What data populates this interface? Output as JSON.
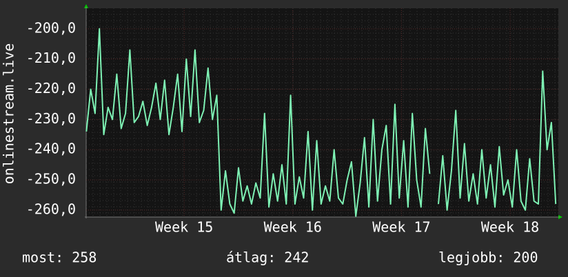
{
  "chart_data": {
    "type": "line",
    "ylabel": "onlinestream.live",
    "x": [
      14.1,
      14.14,
      14.18,
      14.22,
      14.26,
      14.3,
      14.34,
      14.38,
      14.42,
      14.46,
      14.5,
      14.54,
      14.58,
      14.62,
      14.66,
      14.7,
      14.74,
      14.78,
      14.82,
      14.86,
      14.9,
      14.94,
      14.98,
      15.02,
      15.06,
      15.1,
      15.14,
      15.18,
      15.22,
      15.26,
      15.3,
      15.34,
      15.38,
      15.42,
      15.46,
      15.5,
      15.54,
      15.58,
      15.62,
      15.66,
      15.7,
      15.74,
      15.78,
      15.82,
      15.86,
      15.9,
      15.94,
      15.98,
      16.02,
      16.06,
      16.1,
      16.14,
      16.18,
      16.22,
      16.26,
      16.3,
      16.34,
      16.38,
      16.42,
      16.46,
      16.5,
      16.54,
      16.58,
      16.62,
      16.66,
      16.7,
      16.74,
      16.78,
      16.82,
      16.86,
      16.9,
      16.94,
      16.98,
      17.02,
      17.06,
      17.1,
      17.14,
      17.18,
      17.22,
      17.26,
      17.3,
      17.34,
      17.38,
      17.42,
      17.46,
      17.5,
      17.54,
      17.58,
      17.62,
      17.66,
      17.7,
      17.74,
      17.78,
      17.82,
      17.86,
      17.9,
      17.94,
      17.98,
      18.02,
      18.06,
      18.1,
      18.14,
      18.18,
      18.22,
      18.26,
      18.3,
      18.34,
      18.38,
      18.42
    ],
    "series": [
      {
        "color": "#7ef2b4",
        "values": [
          -234,
          -220,
          -228,
          -200,
          -235,
          -226,
          -230,
          -215,
          -233,
          -228,
          -207,
          -231,
          -229,
          -224,
          -232,
          -226,
          -218,
          -230,
          -217,
          -235,
          -226,
          -215,
          -234,
          -210,
          -229,
          -207,
          -231,
          -227,
          -213,
          -230,
          -222,
          -260,
          -247,
          -258,
          -261,
          -246,
          -257,
          -252,
          -258,
          -251,
          -256,
          -228,
          -259,
          -248,
          -257,
          -245,
          -258,
          -222,
          -258,
          -249,
          -256,
          -234,
          -260,
          -237,
          -258,
          -252,
          -257,
          -240,
          -256,
          -258,
          -250,
          -244,
          -262,
          -251,
          -236,
          -259,
          -230,
          -257,
          -240,
          -232,
          -258,
          -225,
          -256,
          -237,
          -259,
          -228,
          -250,
          -259,
          -233,
          -248,
          null,
          -258,
          -242,
          -260,
          -247,
          -227,
          -256,
          -238,
          -257,
          -248,
          -258,
          -240,
          -256,
          -245,
          -259,
          -239,
          -255,
          -250,
          -259,
          -240,
          -257,
          -260,
          -243,
          -257,
          -258,
          -214,
          -240,
          -231,
          -258
        ]
      }
    ],
    "xlim": [
      14.098,
      18.444
    ],
    "xticks": [
      {
        "value": 15,
        "label": "Week 15"
      },
      {
        "value": 16,
        "label": "Week 16"
      },
      {
        "value": 17,
        "label": "Week 17"
      },
      {
        "value": 18,
        "label": "Week 18"
      }
    ],
    "ylim": [
      -262.3,
      -193.2
    ],
    "yticks": [
      {
        "value": -200,
        "label": "-200,0"
      },
      {
        "value": -210,
        "label": "-210,0"
      },
      {
        "value": -220,
        "label": "-220,0"
      },
      {
        "value": -230,
        "label": "-230,0"
      },
      {
        "value": -240,
        "label": "-240,0"
      },
      {
        "value": -250,
        "label": "-250,0"
      },
      {
        "value": -260,
        "label": "-260,0"
      }
    ],
    "grid": true,
    "footer": [
      "most: 258",
      "átlag: 242",
      "legjobb: 200"
    ]
  }
}
